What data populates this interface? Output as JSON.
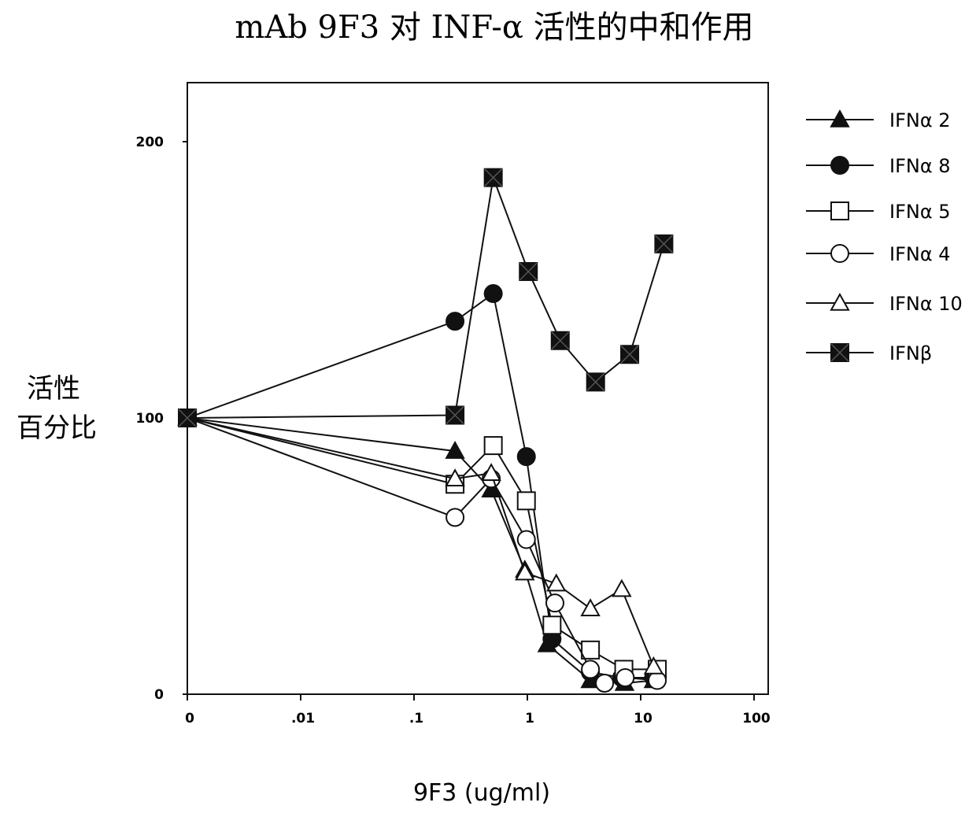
{
  "chart_data": {
    "type": "line",
    "title": "mAb 9F3 对 INF-α 活性的中和作用",
    "ylabel_lines": [
      "活性",
      "百分比"
    ],
    "xlabel": "9F3 (ug/ml)",
    "x_scale": "log (with 0 plotted at leftmost decade)",
    "x_ticks": [
      "0",
      ".01",
      ".1",
      "1",
      "10",
      "100"
    ],
    "x_tick_values": [
      0,
      0.01,
      0.1,
      1,
      10,
      100
    ],
    "y_ticks": [
      "0",
      "100",
      "200"
    ],
    "y_tick_values": [
      0,
      100,
      200
    ],
    "ylim": [
      0,
      220
    ],
    "grid": false,
    "legend_position": "right",
    "series": [
      {
        "name": "IFNα 2",
        "marker": "triangle-filled",
        "points": [
          [
            0,
            100
          ],
          [
            0.23,
            88
          ],
          [
            0.48,
            74
          ],
          [
            0.95,
            45
          ],
          [
            1.5,
            18
          ],
          [
            3.6,
            5
          ],
          [
            7.2,
            4
          ],
          [
            13,
            5
          ]
        ]
      },
      {
        "name": "IFNα 8",
        "marker": "circle-filled",
        "points": [
          [
            0,
            100
          ],
          [
            0.23,
            135
          ],
          [
            0.5,
            145
          ],
          [
            0.98,
            86
          ],
          [
            1.65,
            20
          ],
          [
            3.6,
            8
          ],
          [
            6.8,
            6
          ],
          [
            13,
            6
          ]
        ]
      },
      {
        "name": "IFNα 5",
        "marker": "square-open",
        "points": [
          [
            0,
            100
          ],
          [
            0.23,
            76
          ],
          [
            0.5,
            90
          ],
          [
            0.98,
            70
          ],
          [
            1.65,
            25
          ],
          [
            3.6,
            16
          ],
          [
            7.1,
            9
          ],
          [
            14,
            9
          ]
        ]
      },
      {
        "name": "IFNα 4",
        "marker": "circle-open",
        "points": [
          [
            0,
            100
          ],
          [
            0.23,
            64
          ],
          [
            0.48,
            78
          ],
          [
            0.98,
            56
          ],
          [
            1.75,
            33
          ],
          [
            3.6,
            9
          ],
          [
            4.8,
            4
          ],
          [
            7.3,
            6
          ],
          [
            14,
            5
          ]
        ]
      },
      {
        "name": "IFNα 10",
        "marker": "triangle-open",
        "points": [
          [
            0,
            100
          ],
          [
            0.23,
            78
          ],
          [
            0.48,
            80
          ],
          [
            0.95,
            44
          ],
          [
            1.8,
            40
          ],
          [
            3.6,
            31
          ],
          [
            6.8,
            38
          ],
          [
            13,
            10
          ]
        ]
      },
      {
        "name": "IFNβ",
        "marker": "square-filled",
        "points": [
          [
            0,
            100
          ],
          [
            0.23,
            101
          ],
          [
            0.5,
            187
          ],
          [
            1.02,
            153
          ],
          [
            1.95,
            128
          ],
          [
            4,
            113
          ],
          [
            8,
            123
          ],
          [
            16,
            163
          ]
        ]
      }
    ]
  }
}
